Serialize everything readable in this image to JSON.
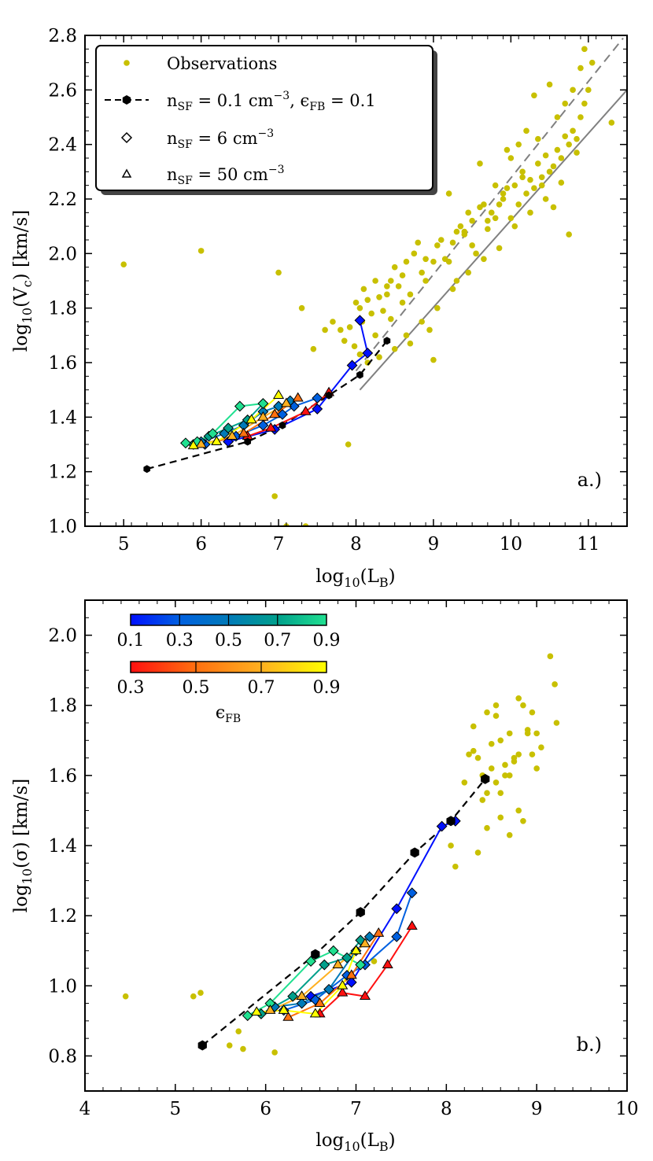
{
  "chart_data": [
    {
      "type": "scatter",
      "panel_tag": "a.)",
      "xlabel": "log10(LB)",
      "ylabel": "log10(Vc) [km/s]",
      "xlim": [
        4.5,
        11.5
      ],
      "ylim": [
        1.0,
        2.8
      ],
      "xticks": [
        5,
        6,
        7,
        8,
        9,
        10,
        11
      ],
      "yticks": [
        1.0,
        1.2,
        1.4,
        1.6,
        1.8,
        2.0,
        2.2,
        2.4,
        2.6,
        2.8
      ],
      "legend": {
        "position": "top-left",
        "entries": [
          {
            "marker": "dot",
            "label": "Observations"
          },
          {
            "marker": "hexagon-dashed-line",
            "label": "n_SF = 0.1 cm^-3, ε_FB = 0.1"
          },
          {
            "marker": "diamond",
            "label": "n_SF = 6 cm^-3"
          },
          {
            "marker": "triangle",
            "label": "n_SF = 50 cm^-3"
          }
        ]
      },
      "observations": {
        "color": "#c8c000",
        "x": [
          5.0,
          6.0,
          7.0,
          7.3,
          7.45,
          7.6,
          7.7,
          7.9,
          6.95,
          7.1,
          7.35,
          7.8,
          7.85,
          7.92,
          7.98,
          8.0,
          8.05,
          8.08,
          8.1,
          8.15,
          8.2,
          8.25,
          8.3,
          8.35,
          8.4,
          8.45,
          8.5,
          8.55,
          8.6,
          8.65,
          8.7,
          8.75,
          8.8,
          8.85,
          8.9,
          8.95,
          9.0,
          9.05,
          9.1,
          9.15,
          9.2,
          9.25,
          9.3,
          9.35,
          9.4,
          9.45,
          9.5,
          9.55,
          9.6,
          9.65,
          9.7,
          9.75,
          9.8,
          9.85,
          9.9,
          9.95,
          10.0,
          10.05,
          10.1,
          10.15,
          10.2,
          10.25,
          10.3,
          10.35,
          10.4,
          10.45,
          10.5,
          10.55,
          10.6,
          10.65,
          10.7,
          10.75,
          10.8,
          10.85,
          10.9,
          10.95,
          11.0,
          11.05,
          11.3,
          10.95,
          10.1,
          10.3,
          10.5,
          10.7,
          10.9,
          9.6,
          9.8,
          9.95,
          10.2,
          10.6,
          10.8,
          9.2,
          9.4,
          8.9,
          8.6,
          8.45,
          8.25,
          8.4,
          8.7,
          9.0,
          9.3,
          9.5,
          9.7,
          9.9,
          10.0,
          10.15,
          10.35,
          10.45,
          10.55,
          10.65,
          10.75,
          10.85,
          10.4,
          10.25,
          10.05,
          9.85,
          9.65,
          9.45,
          9.25,
          9.05,
          8.85,
          8.65,
          8.5,
          8.3,
          8.15,
          8.05
        ],
        "y": [
          1.96,
          2.01,
          1.93,
          1.8,
          1.65,
          1.72,
          1.75,
          1.3,
          1.11,
          1.0,
          1.0,
          1.72,
          1.68,
          1.73,
          1.66,
          1.82,
          1.8,
          1.75,
          1.87,
          1.83,
          1.78,
          1.9,
          1.84,
          1.79,
          1.88,
          1.9,
          1.95,
          1.88,
          1.92,
          1.97,
          1.85,
          2.0,
          2.04,
          1.93,
          1.98,
          1.72,
          1.97,
          2.03,
          2.05,
          1.98,
          2.22,
          2.04,
          2.08,
          2.1,
          2.07,
          2.15,
          2.12,
          2.0,
          2.17,
          2.18,
          2.09,
          2.15,
          2.13,
          2.18,
          2.2,
          2.24,
          2.13,
          2.25,
          2.18,
          2.3,
          2.22,
          2.27,
          2.24,
          2.33,
          2.28,
          2.36,
          2.3,
          2.32,
          2.38,
          2.35,
          2.43,
          2.4,
          2.45,
          2.42,
          2.5,
          2.55,
          2.6,
          2.7,
          2.48,
          2.75,
          2.4,
          2.58,
          2.62,
          2.55,
          2.68,
          2.33,
          2.25,
          2.38,
          2.45,
          2.5,
          2.6,
          1.97,
          2.08,
          1.9,
          1.82,
          1.76,
          1.7,
          1.85,
          1.67,
          1.61,
          1.9,
          2.03,
          2.12,
          2.22,
          2.35,
          2.28,
          2.42,
          2.2,
          2.17,
          2.26,
          2.07,
          2.37,
          2.25,
          2.15,
          2.1,
          2.02,
          1.98,
          1.93,
          1.87,
          1.8,
          1.75,
          1.7,
          1.65,
          1.62,
          1.6,
          1.63
        ]
      },
      "reference_lines": [
        {
          "style": "solid",
          "color": "#808080",
          "x": [
            8.05,
            11.5
          ],
          "y": [
            1.5,
            2.6
          ]
        },
        {
          "style": "dashed",
          "color": "#808080",
          "x": [
            8.0,
            11.45
          ],
          "y": [
            1.57,
            2.79
          ]
        }
      ],
      "fiducial": {
        "label": "n_SF = 0.1 cm^-3, ε_FB = 0.1",
        "x": [
          5.3,
          6.6,
          7.05,
          7.65,
          8.05,
          8.4
        ],
        "y": [
          1.21,
          1.31,
          1.37,
          1.48,
          1.555,
          1.68
        ]
      },
      "tracks": [
        {
          "marker": "diamond",
          "eps": 0.1,
          "color": "#0010ff",
          "x": [
            6.35,
            6.95,
            7.5,
            7.95,
            8.15,
            8.05
          ],
          "y": [
            1.31,
            1.355,
            1.43,
            1.59,
            1.635,
            1.755
          ]
        },
        {
          "marker": "diamond",
          "eps": 0.3,
          "color": "#0060e0",
          "x": [
            6.05,
            6.45,
            6.8,
            7.05,
            7.2,
            7.5
          ],
          "y": [
            1.3,
            1.33,
            1.37,
            1.41,
            1.44,
            1.47
          ]
        },
        {
          "marker": "diamond",
          "eps": 0.5,
          "color": "#007ab8",
          "x": [
            6.0,
            6.3,
            6.55,
            6.8,
            7.0,
            7.15
          ],
          "y": [
            1.31,
            1.34,
            1.37,
            1.42,
            1.44,
            1.46
          ]
        },
        {
          "marker": "diamond",
          "eps": 0.7,
          "color": "#00a08c",
          "x": [
            5.9,
            6.1,
            6.35,
            6.6,
            6.8
          ],
          "y": [
            1.3,
            1.33,
            1.36,
            1.39,
            1.45
          ]
        },
        {
          "marker": "diamond",
          "eps": 0.9,
          "color": "#20e090",
          "x": [
            5.8,
            5.95,
            6.15,
            6.5,
            6.8
          ],
          "y": [
            1.305,
            1.31,
            1.34,
            1.44,
            1.45
          ]
        },
        {
          "marker": "triangle",
          "eps": 0.3,
          "color": "#ff1010",
          "x": [
            6.6,
            6.9,
            7.35,
            7.65
          ],
          "y": [
            1.33,
            1.36,
            1.42,
            1.49
          ]
        },
        {
          "marker": "triangle",
          "eps": 0.5,
          "color": "#ff7010",
          "x": [
            6.2,
            6.55,
            6.95,
            7.25
          ],
          "y": [
            1.31,
            1.34,
            1.41,
            1.47
          ]
        },
        {
          "marker": "triangle",
          "eps": 0.7,
          "color": "#ffb020",
          "x": [
            6.0,
            6.4,
            6.8,
            7.1
          ],
          "y": [
            1.3,
            1.33,
            1.4,
            1.45
          ]
        },
        {
          "marker": "triangle",
          "eps": 0.9,
          "color": "#ffff00",
          "x": [
            5.9,
            6.2,
            6.65,
            7.0
          ],
          "y": [
            1.295,
            1.31,
            1.39,
            1.48
          ]
        }
      ]
    },
    {
      "type": "scatter",
      "panel_tag": "b.)",
      "xlabel": "log10(LB)",
      "ylabel": "log10(σ) [km/s]",
      "xlim": [
        4,
        10
      ],
      "ylim": [
        0.7,
        2.1
      ],
      "xticks": [
        4,
        5,
        6,
        7,
        8,
        9,
        10
      ],
      "yticks": [
        0.8,
        1.0,
        1.2,
        1.4,
        1.6,
        1.8,
        2.0
      ],
      "colorbars": {
        "label": "ε_FB",
        "position": "top-left",
        "diamond_bar": {
          "colors": [
            "#0010ff",
            "#0060e0",
            "#007ab8",
            "#00a08c",
            "#20e090"
          ],
          "ticks": [
            "0.1",
            "0.3",
            "0.5",
            "0.7",
            "0.9"
          ]
        },
        "triangle_bar": {
          "colors": [
            "#ff1010",
            "#ff7010",
            "#ffb020",
            "#ffff00"
          ],
          "ticks": [
            "0.3",
            "0.5",
            "0.7",
            "0.9"
          ]
        }
      },
      "observations": {
        "color": "#c8c000",
        "x": [
          4.45,
          5.2,
          5.28,
          5.6,
          5.7,
          5.75,
          6.1,
          7.2,
          8.05,
          8.1,
          8.3,
          8.35,
          8.4,
          8.45,
          8.5,
          8.55,
          8.6,
          8.65,
          8.7,
          8.75,
          8.8,
          8.85,
          8.9,
          8.95,
          9.0,
          9.05,
          9.15,
          9.2,
          9.22,
          8.55,
          8.6,
          8.7,
          8.8,
          8.85,
          8.9,
          8.4,
          8.45,
          8.35,
          8.25,
          8.5,
          8.65,
          8.75,
          8.95,
          8.3,
          8.6,
          8.8,
          9.0,
          8.45,
          8.2,
          8.55,
          8.7
        ],
        "y": [
          0.97,
          0.97,
          0.98,
          0.83,
          0.87,
          0.82,
          0.81,
          1.07,
          1.4,
          1.34,
          1.67,
          1.65,
          1.6,
          1.78,
          1.62,
          1.8,
          1.7,
          1.63,
          1.6,
          1.65,
          1.82,
          1.8,
          1.72,
          1.78,
          1.72,
          1.68,
          1.94,
          1.86,
          1.75,
          1.58,
          1.48,
          1.43,
          1.5,
          1.47,
          1.73,
          1.53,
          1.45,
          1.38,
          1.66,
          1.69,
          1.6,
          1.64,
          1.66,
          1.74,
          1.55,
          1.66,
          1.62,
          1.55,
          1.58,
          1.77,
          1.72
        ]
      },
      "fiducial": {
        "label": "n_SF = 0.1 cm^-3, ε_FB = 0.1",
        "x": [
          5.3,
          6.55,
          7.05,
          7.65,
          8.05,
          8.43
        ],
        "y": [
          0.83,
          1.09,
          1.21,
          1.38,
          1.47,
          1.59
        ]
      },
      "tracks": [
        {
          "marker": "diamond",
          "eps": 0.1,
          "color": "#0010ff",
          "x": [
            6.5,
            6.95,
            7.45,
            7.95,
            8.1
          ],
          "y": [
            0.97,
            1.01,
            1.22,
            1.455,
            1.47
          ]
        },
        {
          "marker": "diamond",
          "eps": 0.3,
          "color": "#0060e0",
          "x": [
            6.2,
            6.55,
            6.9,
            7.1,
            7.45,
            7.62
          ],
          "y": [
            0.93,
            0.96,
            1.03,
            1.06,
            1.14,
            1.265
          ]
        },
        {
          "marker": "diamond",
          "eps": 0.5,
          "color": "#007ab8",
          "x": [
            6.1,
            6.4,
            6.7,
            7.0,
            7.15
          ],
          "y": [
            0.94,
            0.95,
            0.99,
            1.1,
            1.14
          ]
        },
        {
          "marker": "diamond",
          "eps": 0.7,
          "color": "#00a08c",
          "x": [
            5.95,
            6.3,
            6.65,
            6.9,
            7.05
          ],
          "y": [
            0.92,
            0.97,
            1.06,
            1.08,
            1.13
          ]
        },
        {
          "marker": "diamond",
          "eps": 0.9,
          "color": "#20e090",
          "x": [
            5.8,
            6.05,
            6.5,
            6.75,
            7.05
          ],
          "y": [
            0.915,
            0.95,
            1.07,
            1.1,
            1.06
          ]
        },
        {
          "marker": "triangle",
          "eps": 0.3,
          "color": "#ff1010",
          "x": [
            6.6,
            6.85,
            7.1,
            7.35,
            7.62
          ],
          "y": [
            0.92,
            0.98,
            0.97,
            1.06,
            1.17
          ]
        },
        {
          "marker": "triangle",
          "eps": 0.5,
          "color": "#ff7010",
          "x": [
            6.25,
            6.6,
            6.95,
            7.25
          ],
          "y": [
            0.91,
            0.95,
            1.03,
            1.15
          ]
        },
        {
          "marker": "triangle",
          "eps": 0.7,
          "color": "#ffb020",
          "x": [
            6.05,
            6.4,
            6.8,
            7.1
          ],
          "y": [
            0.93,
            0.97,
            1.06,
            1.12
          ]
        },
        {
          "marker": "triangle",
          "eps": 0.9,
          "color": "#ffff00",
          "x": [
            5.9,
            6.2,
            6.55,
            6.85,
            7.0
          ],
          "y": [
            0.925,
            0.93,
            0.92,
            1.0,
            1.1
          ]
        }
      ]
    }
  ]
}
